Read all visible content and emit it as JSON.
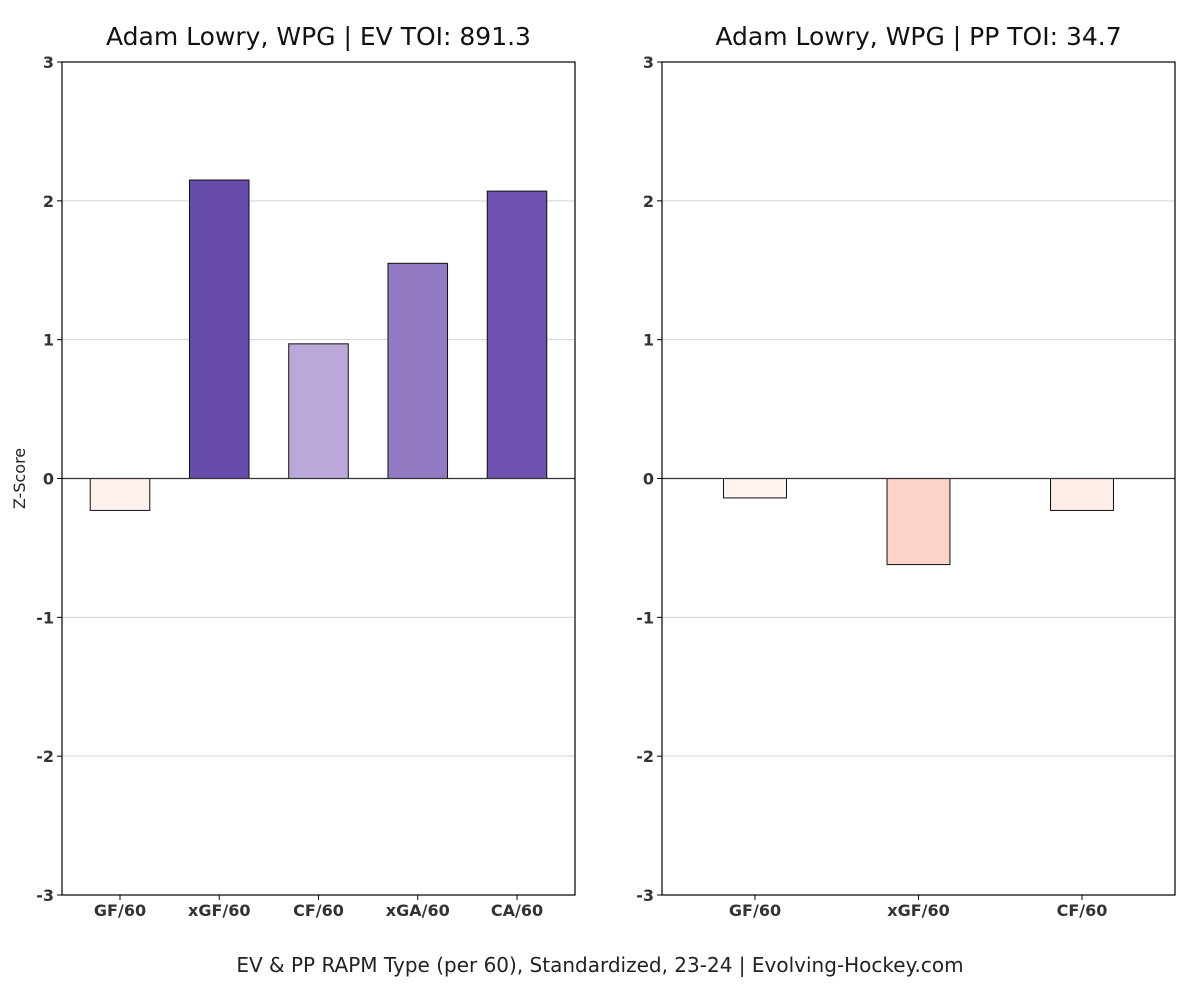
{
  "chart_data": [
    {
      "type": "bar",
      "title": "Adam Lowry, WPG  |  EV TOI: 891.3",
      "ylabel": "Z-Score",
      "ylim": [
        -3,
        3
      ],
      "yticks": [
        -3,
        -2,
        -1,
        0,
        1,
        2,
        3
      ],
      "grid": true,
      "categories": [
        "GF/60",
        "xGF/60",
        "CF/60",
        "xGA/60",
        "CA/60"
      ],
      "values": [
        -0.23,
        2.15,
        0.97,
        1.55,
        2.07
      ],
      "colors": [
        "#fff0eb",
        "#684cab",
        "#baa8d8",
        "#937bc4",
        "#6f51b0"
      ]
    },
    {
      "type": "bar",
      "title": "Adam Lowry, WPG  |  PP TOI: 34.7",
      "ylabel": "",
      "ylim": [
        -3,
        3
      ],
      "yticks": [
        -3,
        -2,
        -1,
        0,
        1,
        2,
        3
      ],
      "grid": true,
      "categories": [
        "GF/60",
        "xGF/60",
        "CF/60"
      ],
      "values": [
        -0.14,
        -0.62,
        -0.23
      ],
      "colors": [
        "#fff4f0",
        "#fdd3c8",
        "#ffede7"
      ]
    }
  ],
  "footer": "EV & PP RAPM Type (per 60), Standardized, 23-24    |    Evolving-Hockey.com"
}
